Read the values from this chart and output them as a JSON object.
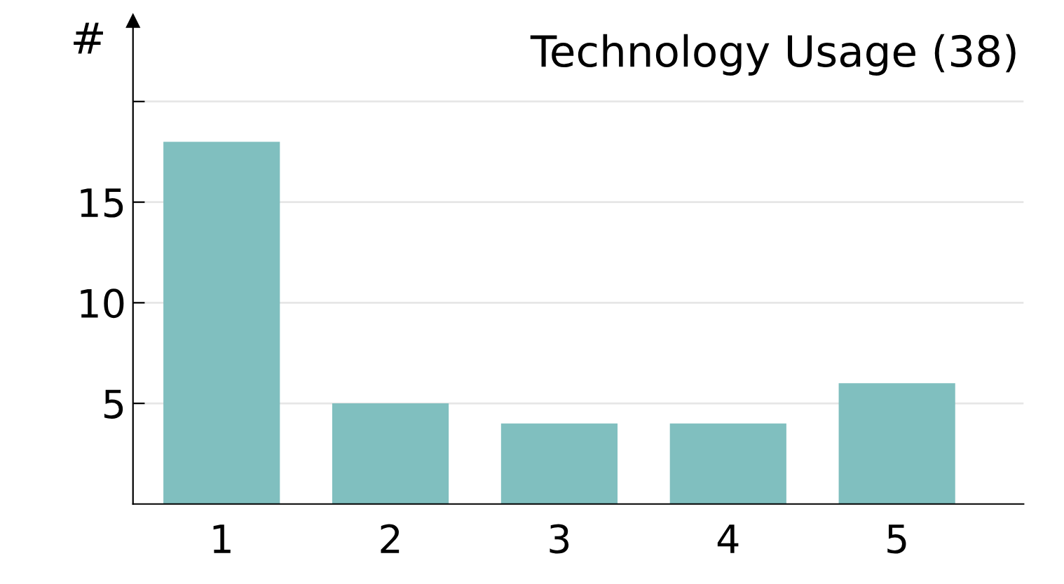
{
  "chart_data": {
    "type": "bar",
    "title": "Technology Usage (38)",
    "ylabel": "#",
    "categories": [
      "1",
      "2",
      "3",
      "4",
      "5"
    ],
    "values": [
      18,
      5,
      4,
      4,
      6
    ],
    "color": "#80bfbf",
    "ylim": [
      0,
      24
    ],
    "yticks": [
      5,
      10,
      15,
      {
        "value": 20,
        "label": null
      }
    ],
    "grid": "y"
  }
}
